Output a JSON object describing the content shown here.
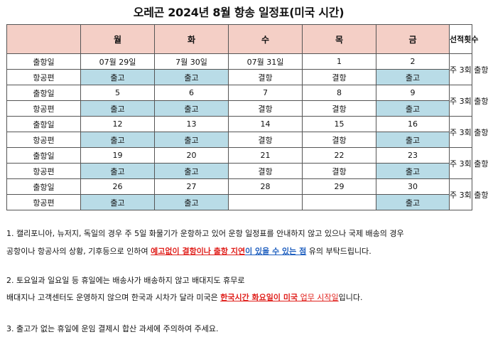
{
  "title": "오레곤 2024년 8월 항송 일정표(미국 시간)",
  "table": {
    "headers": [
      "",
      "월",
      "화",
      "수",
      "목",
      "금",
      "선적횟수"
    ],
    "row_labels": {
      "departure": "출항일",
      "flight": "항공편"
    },
    "weeks": [
      {
        "dates": [
          "07월 29일",
          "7월 30일",
          "07월 31일",
          "1",
          "2"
        ],
        "flights": [
          "출고",
          "출고",
          "결항",
          "결항",
          "출고"
        ],
        "rotation": "주 3회 출항"
      },
      {
        "dates": [
          "5",
          "6",
          "7",
          "8",
          "9"
        ],
        "flights": [
          "출고",
          "출고",
          "결항",
          "결항",
          "출고"
        ],
        "rotation": "주 3회 출항"
      },
      {
        "dates": [
          "12",
          "13",
          "14",
          "15",
          "16"
        ],
        "flights": [
          "출고",
          "출고",
          "결항",
          "결항",
          "출고"
        ],
        "rotation": "주 3회 출항"
      },
      {
        "dates": [
          "19",
          "20",
          "21",
          "22",
          "23"
        ],
        "flights": [
          "출고",
          "출고",
          "결항",
          "결항",
          "출고"
        ],
        "rotation": "주 3회 출항"
      },
      {
        "dates": [
          "26",
          "27",
          "28",
          "29",
          "30"
        ],
        "flights": [
          "출고",
          "출고",
          "",
          "",
          "출고"
        ],
        "rotation": "주 3회 출항"
      }
    ]
  },
  "notes": {
    "n1_line1": "1. 캘리포니아, 뉴저지, 독일의 경우 주 5일 화물기가 운항하고 있어 운항 일정표를 안내하지 않고 있으나 국제 배송의 경우",
    "n1_line2_pre": "공항이나 항공사의 상황, 기후등으로 인하여 ",
    "n1_line2_red": "예고없이 결항이나 출항 지연",
    "n1_line2_mid": "이 있을 수 있는 점",
    "n1_line2_post": " 유의 부탁드립니다.",
    "n2_line1": "2. 토요일과 일요일 등 휴일에는 배송사가 배송하지 않고 배대지도 휴무로",
    "n2_line2_pre": "배대지나 고객센터도 운영하지 않으며 한국과 시차가 달라 미국은 ",
    "n2_line2_red": "한국시간 화요일이 미국",
    "n2_line2_mid": " 업무 시작일",
    "n2_line2_post": "입니다.",
    "n3": "3. 출고가 없는 휴일에 운임 결제시 합산 과세에 주의하여 주세요."
  },
  "colors": {
    "header_bg": "#f4cfc6",
    "flight_bg": "#b9dce7",
    "warning_red": "#e0201c",
    "emphasis_blue": "#1f5fbf"
  }
}
